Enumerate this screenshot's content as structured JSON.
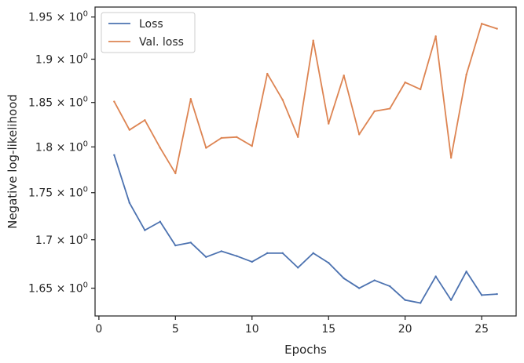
{
  "chart_data": {
    "type": "line",
    "xlabel": "Epochs",
    "ylabel": "Negative log-likelihood",
    "xlim": [
      -0.25,
      27.25
    ],
    "ylim": [
      1.622,
      1.962
    ],
    "yscale": "log",
    "x_ticks": [
      0,
      5,
      10,
      15,
      20,
      25
    ],
    "x_tick_labels": [
      "0",
      "5",
      "10",
      "15",
      "20",
      "25"
    ],
    "y_ticks": [
      1.65,
      1.7,
      1.75,
      1.8,
      1.85,
      1.9,
      1.95
    ],
    "y_tick_mantissas": [
      "1.65",
      "1.7",
      "1.75",
      "1.8",
      "1.85",
      "1.9",
      "1.95"
    ],
    "y_tick_base": "10",
    "y_tick_exponent": "0",
    "grid": false,
    "legend_position": "top-left",
    "x": [
      1,
      2,
      3,
      4,
      5,
      6,
      7,
      8,
      9,
      10,
      11,
      12,
      13,
      14,
      15,
      16,
      17,
      18,
      19,
      20,
      21,
      22,
      23,
      24,
      25,
      26
    ],
    "series": [
      {
        "name": "Loss",
        "color": "#4c72b0",
        "values": [
          1.791,
          1.739,
          1.71,
          1.719,
          1.694,
          1.697,
          1.682,
          1.688,
          1.683,
          1.677,
          1.686,
          1.686,
          1.671,
          1.686,
          1.676,
          1.66,
          1.65,
          1.658,
          1.652,
          1.638,
          1.635,
          1.662,
          1.638,
          1.667,
          1.643,
          1.644
        ]
      },
      {
        "name": "Val. loss",
        "color": "#dd8452",
        "values": [
          1.851,
          1.819,
          1.83,
          1.799,
          1.771,
          1.854,
          1.799,
          1.81,
          1.811,
          1.801,
          1.883,
          1.853,
          1.811,
          1.922,
          1.826,
          1.881,
          1.814,
          1.84,
          1.843,
          1.873,
          1.865,
          1.927,
          1.788,
          1.882,
          1.942,
          1.936
        ]
      }
    ]
  }
}
